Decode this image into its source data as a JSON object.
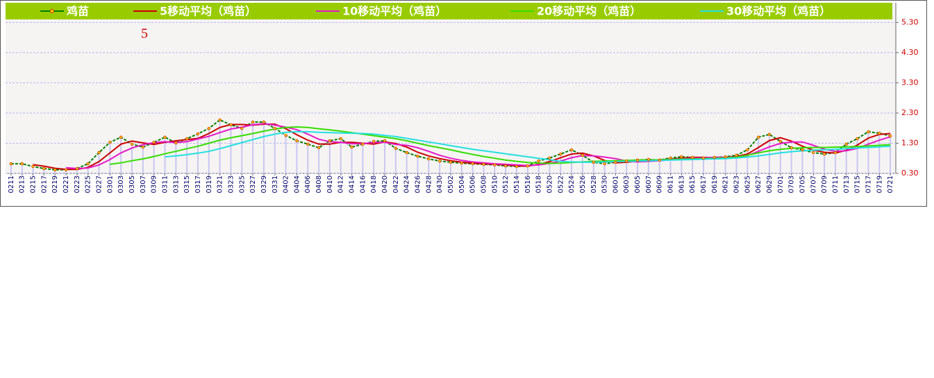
{
  "chart_data": {
    "type": "line",
    "annotation": "5",
    "categories": [
      "0211",
      "0213",
      "0215",
      "0217",
      "0219",
      "0221",
      "0223",
      "0225",
      "0227",
      "0301",
      "0303",
      "0305",
      "0307",
      "0309",
      "0311",
      "0313",
      "0315",
      "0317",
      "0319",
      "0321",
      "0323",
      "0325",
      "0327",
      "0329",
      "0331",
      "0402",
      "0404",
      "0406",
      "0408",
      "0410",
      "0412",
      "0414",
      "0416",
      "0418",
      "0420",
      "0422",
      "0424",
      "0426",
      "0428",
      "0430",
      "0502",
      "0504",
      "0506",
      "0508",
      "0510",
      "0512",
      "0514",
      "0516",
      "0518",
      "0520",
      "0522",
      "0524",
      "0526",
      "0528",
      "0530",
      "0601",
      "0603",
      "0605",
      "0607",
      "0609",
      "0611",
      "0613",
      "0615",
      "0617",
      "0619",
      "0621",
      "0623",
      "0625",
      "0627",
      "0629",
      "0701",
      "0703",
      "0705",
      "0707",
      "0709",
      "0711",
      "0713",
      "0715",
      "0717",
      "0719",
      "0721"
    ],
    "series": [
      {
        "name": "鸡苗",
        "color": "#008000",
        "bar_color": "#c8c8f0",
        "values": [
          0.62,
          0.62,
          0.53,
          0.46,
          0.42,
          0.42,
          0.46,
          0.62,
          0.99,
          1.33,
          1.5,
          1.27,
          1.17,
          1.33,
          1.5,
          1.31,
          1.45,
          1.61,
          1.79,
          2.07,
          1.91,
          1.79,
          2.0,
          2.0,
          1.79,
          1.56,
          1.38,
          1.27,
          1.15,
          1.38,
          1.45,
          1.17,
          1.27,
          1.36,
          1.38,
          1.13,
          0.99,
          0.87,
          0.78,
          0.71,
          0.67,
          0.64,
          0.62,
          0.6,
          0.58,
          0.55,
          0.53,
          0.55,
          0.71,
          0.81,
          0.94,
          1.08,
          0.9,
          0.67,
          0.62,
          0.67,
          0.71,
          0.74,
          0.76,
          0.74,
          0.81,
          0.85,
          0.83,
          0.81,
          0.83,
          0.85,
          0.9,
          1.08,
          1.5,
          1.59,
          1.36,
          1.15,
          1.08,
          0.99,
          0.94,
          0.99,
          1.27,
          1.45,
          1.68,
          1.63,
          1.54
        ]
      },
      {
        "name": "5移动平均（鸡苗）",
        "color": "#cc0000",
        "values": [
          null,
          null,
          0.59,
          0.54,
          0.47,
          0.43,
          0.43,
          0.5,
          0.69,
          0.98,
          1.27,
          1.37,
          1.31,
          1.26,
          1.33,
          1.38,
          1.42,
          1.46,
          1.62,
          1.82,
          1.92,
          1.92,
          1.9,
          1.93,
          1.93,
          1.78,
          1.58,
          1.4,
          1.27,
          1.27,
          1.33,
          1.33,
          1.3,
          1.27,
          1.34,
          1.29,
          1.17,
          1.0,
          0.88,
          0.79,
          0.72,
          0.67,
          0.64,
          0.62,
          0.6,
          0.58,
          0.55,
          0.54,
          0.6,
          0.69,
          0.82,
          0.94,
          0.97,
          0.88,
          0.73,
          0.65,
          0.67,
          0.71,
          0.74,
          0.75,
          0.77,
          0.8,
          0.83,
          0.83,
          0.82,
          0.83,
          0.86,
          0.94,
          1.16,
          1.39,
          1.48,
          1.37,
          1.2,
          1.07,
          1.0,
          0.97,
          1.07,
          1.24,
          1.47,
          1.59,
          1.62
        ]
      },
      {
        "name": "10移动平均（鸡苗）",
        "color": "#e619c8",
        "values": [
          null,
          null,
          null,
          null,
          null,
          0.49,
          0.46,
          0.48,
          0.58,
          0.76,
          0.98,
          1.14,
          1.25,
          1.32,
          1.35,
          1.32,
          1.35,
          1.44,
          1.53,
          1.65,
          1.77,
          1.83,
          1.91,
          1.95,
          1.9,
          1.83,
          1.75,
          1.6,
          1.43,
          1.35,
          1.33,
          1.28,
          1.28,
          1.33,
          1.33,
          1.26,
          1.23,
          1.15,
          1.03,
          0.9,
          0.8,
          0.73,
          0.68,
          0.65,
          0.62,
          0.6,
          0.58,
          0.56,
          0.58,
          0.63,
          0.71,
          0.82,
          0.89,
          0.88,
          0.84,
          0.79,
          0.71,
          0.68,
          0.7,
          0.72,
          0.75,
          0.78,
          0.8,
          0.81,
          0.83,
          0.83,
          0.84,
          0.89,
          1.03,
          1.18,
          1.29,
          1.34,
          1.34,
          1.23,
          1.1,
          1.03,
          1.05,
          1.13,
          1.27,
          1.4,
          1.51
        ]
      },
      {
        "name": "20移动平均（鸡苗）",
        "color": "#33dd00",
        "values": [
          null,
          null,
          null,
          null,
          null,
          null,
          null,
          null,
          null,
          0.6,
          0.65,
          0.72,
          0.78,
          0.86,
          0.95,
          1.03,
          1.12,
          1.2,
          1.3,
          1.4,
          1.48,
          1.55,
          1.62,
          1.7,
          1.77,
          1.82,
          1.84,
          1.82,
          1.78,
          1.74,
          1.7,
          1.65,
          1.6,
          1.55,
          1.5,
          1.45,
          1.38,
          1.3,
          1.22,
          1.15,
          1.08,
          1.0,
          0.93,
          0.86,
          0.8,
          0.74,
          0.7,
          0.66,
          0.64,
          0.63,
          0.64,
          0.66,
          0.68,
          0.7,
          0.71,
          0.72,
          0.73,
          0.74,
          0.74,
          0.75,
          0.76,
          0.77,
          0.78,
          0.79,
          0.8,
          0.81,
          0.84,
          0.9,
          0.98,
          1.05,
          1.1,
          1.13,
          1.15,
          1.16,
          1.16,
          1.17,
          1.18,
          1.19,
          1.21,
          1.23,
          1.25
        ]
      },
      {
        "name": "30移动平均（鸡苗）",
        "color": "#22e0e0",
        "values": [
          null,
          null,
          null,
          null,
          null,
          null,
          null,
          null,
          null,
          null,
          null,
          null,
          null,
          null,
          0.85,
          0.88,
          0.92,
          0.97,
          1.03,
          1.12,
          1.22,
          1.32,
          1.42,
          1.52,
          1.6,
          1.66,
          1.68,
          1.68,
          1.66,
          1.65,
          1.64,
          1.63,
          1.62,
          1.6,
          1.56,
          1.52,
          1.46,
          1.4,
          1.34,
          1.28,
          1.22,
          1.16,
          1.1,
          1.05,
          1.0,
          0.95,
          0.9,
          0.85,
          0.8,
          0.75,
          0.7,
          0.68,
          0.67,
          0.67,
          0.68,
          0.69,
          0.7,
          0.71,
          0.72,
          0.73,
          0.74,
          0.75,
          0.76,
          0.77,
          0.78,
          0.79,
          0.81,
          0.84,
          0.88,
          0.93,
          0.98,
          1.02,
          1.05,
          1.07,
          1.08,
          1.1,
          1.12,
          1.14,
          1.16,
          1.18,
          1.2
        ]
      }
    ],
    "ylim": [
      0.3,
      5.4
    ],
    "yticks": [
      {
        "value": 0.3,
        "label": "0.30"
      },
      {
        "value": 1.3,
        "label": "1.30"
      },
      {
        "value": 2.3,
        "label": "2.30"
      },
      {
        "value": 3.3,
        "label": "3.30"
      },
      {
        "value": 4.3,
        "label": "4.30"
      },
      {
        "value": 5.3,
        "label": "5.30"
      }
    ],
    "grid": true,
    "legend": "top"
  }
}
